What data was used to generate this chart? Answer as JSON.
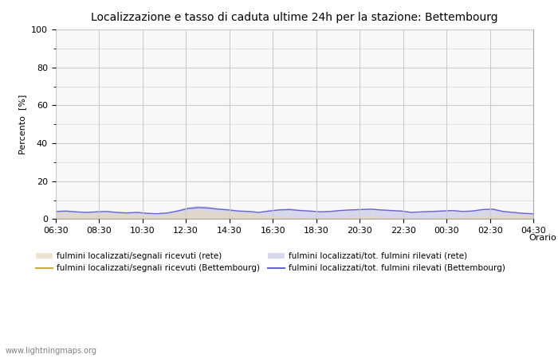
{
  "title": "Localizzazione e tasso di caduta ultime 24h per la stazione: Bettembourg",
  "ylabel": "Percento  [%]",
  "xlabel": "Orario",
  "xlim": [
    0,
    48
  ],
  "ylim": [
    0,
    100
  ],
  "yticks": [
    0,
    20,
    40,
    60,
    80,
    100
  ],
  "yticks_minor": [
    10,
    30,
    50,
    70,
    90
  ],
  "xtick_labels": [
    "06:30",
    "08:30",
    "10:30",
    "12:30",
    "14:30",
    "16:30",
    "18:30",
    "20:30",
    "22:30",
    "00:30",
    "02:30",
    "04:30"
  ],
  "background_color": "#ffffff",
  "plot_bg_color": "#f8f8f8",
  "grid_color": "#cccccc",
  "fill_rete_color": "#e8d8c0",
  "fill_rete_alpha": 0.7,
  "fill_tot_rete_color": "#c8c8e8",
  "fill_tot_rete_alpha": 0.7,
  "line_bettembourg_color": "#ccaa44",
  "line_tot_bettembourg_color": "#6666cc",
  "watermark": "www.lightningmaps.org",
  "legend_labels": [
    "fulmini localizzati/segnali ricevuti (rete)",
    "fulmini localizzati/segnali ricevuti (Bettembourg)",
    "fulmini localizzati/tot. fulmini rilevati (rete)",
    "fulmini localizzati/tot. fulmini rilevati (Bettembourg)"
  ],
  "fill_rete_values": [
    3.2,
    3.5,
    3.1,
    2.9,
    3.0,
    3.2,
    2.8,
    2.5,
    2.4,
    2.2,
    2.0,
    2.5,
    3.5,
    4.5,
    4.8,
    4.2,
    3.8,
    4.0,
    3.5,
    3.2,
    2.8,
    2.0,
    1.5,
    1.2,
    1.0,
    0.8,
    0.8,
    0.9,
    1.0,
    1.2,
    1.5,
    1.8,
    1.2,
    1.0,
    0.8,
    0.5,
    0.5,
    0.6,
    0.8,
    1.0,
    1.2,
    1.5,
    1.8,
    2.0,
    2.2,
    2.5,
    2.2,
    2.0
  ],
  "fill_tot_rete_values": [
    4.5,
    4.8,
    4.2,
    4.0,
    4.2,
    4.5,
    4.0,
    3.8,
    4.0,
    3.5,
    3.2,
    3.8,
    5.0,
    6.5,
    7.2,
    6.8,
    6.0,
    5.5,
    4.8,
    4.5,
    4.0,
    5.0,
    5.5,
    5.8,
    5.2,
    4.8,
    4.2,
    4.5,
    5.0,
    5.2,
    5.5,
    5.8,
    5.2,
    5.0,
    4.8,
    4.0,
    4.2,
    4.5,
    4.8,
    5.0,
    4.5,
    4.8,
    5.5,
    5.8,
    4.5,
    4.0,
    3.5,
    3.0
  ],
  "line_bettembourg_values": [
    0,
    0,
    0,
    0,
    0,
    0,
    0,
    0,
    0,
    0,
    0,
    0,
    0,
    0,
    0,
    0,
    0,
    0,
    0,
    0,
    0,
    0,
    0,
    0,
    0,
    0,
    0,
    0,
    0,
    0,
    0,
    0,
    0,
    0,
    0,
    0,
    0,
    0,
    0,
    0,
    0,
    0,
    0,
    0,
    0,
    0,
    0,
    0
  ],
  "line_tot_bettembourg_values": [
    4.0,
    4.2,
    3.8,
    3.5,
    3.8,
    4.0,
    3.5,
    3.2,
    3.5,
    3.0,
    2.8,
    3.2,
    4.2,
    5.5,
    6.0,
    5.8,
    5.2,
    4.8,
    4.2,
    4.0,
    3.5,
    4.2,
    4.8,
    5.0,
    4.5,
    4.2,
    3.8,
    4.0,
    4.5,
    4.8,
    5.0,
    5.2,
    4.8,
    4.5,
    4.2,
    3.5,
    3.8,
    4.0,
    4.2,
    4.5,
    4.0,
    4.2,
    5.0,
    5.2,
    4.0,
    3.5,
    3.0,
    2.8
  ]
}
